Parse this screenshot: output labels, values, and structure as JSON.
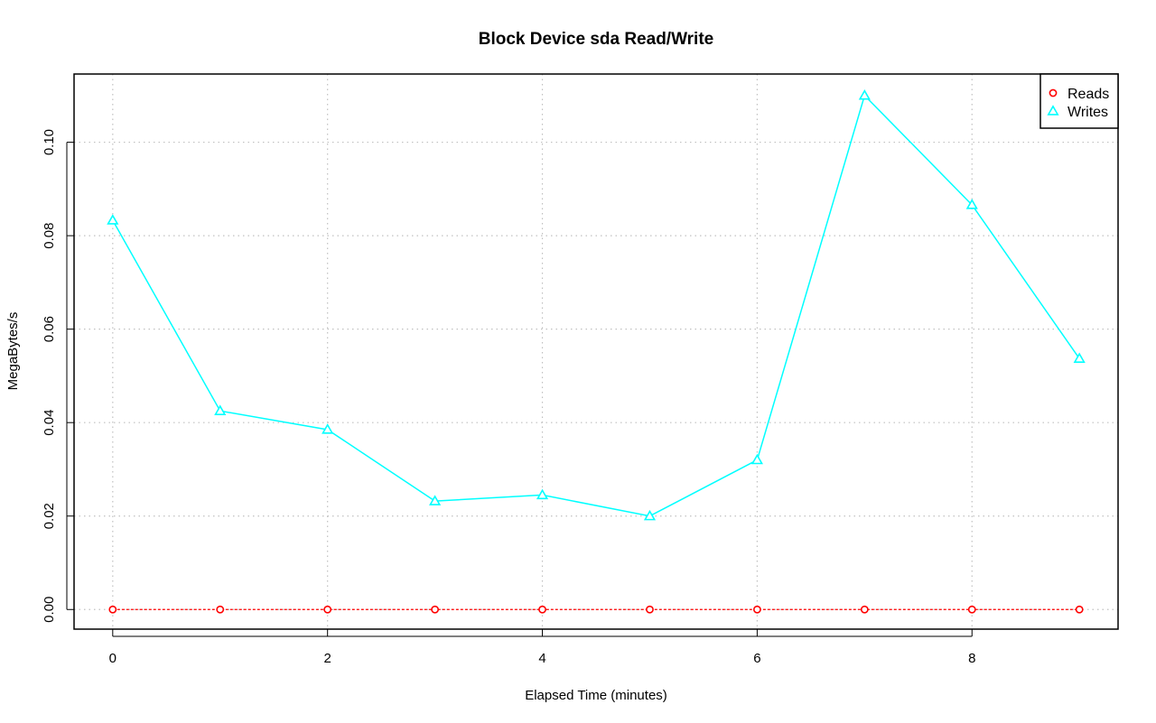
{
  "chart_data": {
    "type": "line",
    "title": "Block Device sda Read/Write",
    "xlabel": "Elapsed Time (minutes)",
    "ylabel": "MegaBytes/s",
    "xlim": [
      -0.36,
      9.36
    ],
    "ylim": [
      -0.0042,
      0.1146
    ],
    "x_ticks": [
      0,
      2,
      4,
      6,
      8
    ],
    "x_tick_labels": [
      "0",
      "2",
      "4",
      "6",
      "8"
    ],
    "y_ticks": [
      0.0,
      0.02,
      0.04,
      0.06,
      0.08,
      0.1
    ],
    "y_tick_labels": [
      "0.00",
      "0.02",
      "0.04",
      "0.06",
      "0.08",
      "0.10"
    ],
    "grid": true,
    "legend_position": "top-right",
    "x": [
      0,
      1,
      2,
      3,
      4,
      5,
      6,
      7,
      8,
      9
    ],
    "series": [
      {
        "name": "Reads",
        "marker": "circle",
        "line_style": "dashed",
        "color": "#ff0000",
        "values": [
          0,
          0,
          0,
          0,
          0,
          0,
          0,
          0,
          0,
          0
        ]
      },
      {
        "name": "Writes",
        "marker": "triangle",
        "line_style": "solid",
        "color": "#00ffff",
        "values": [
          0.0833,
          0.0425,
          0.0385,
          0.0232,
          0.0245,
          0.02,
          0.032,
          0.11,
          0.0866,
          0.0537
        ]
      }
    ]
  }
}
